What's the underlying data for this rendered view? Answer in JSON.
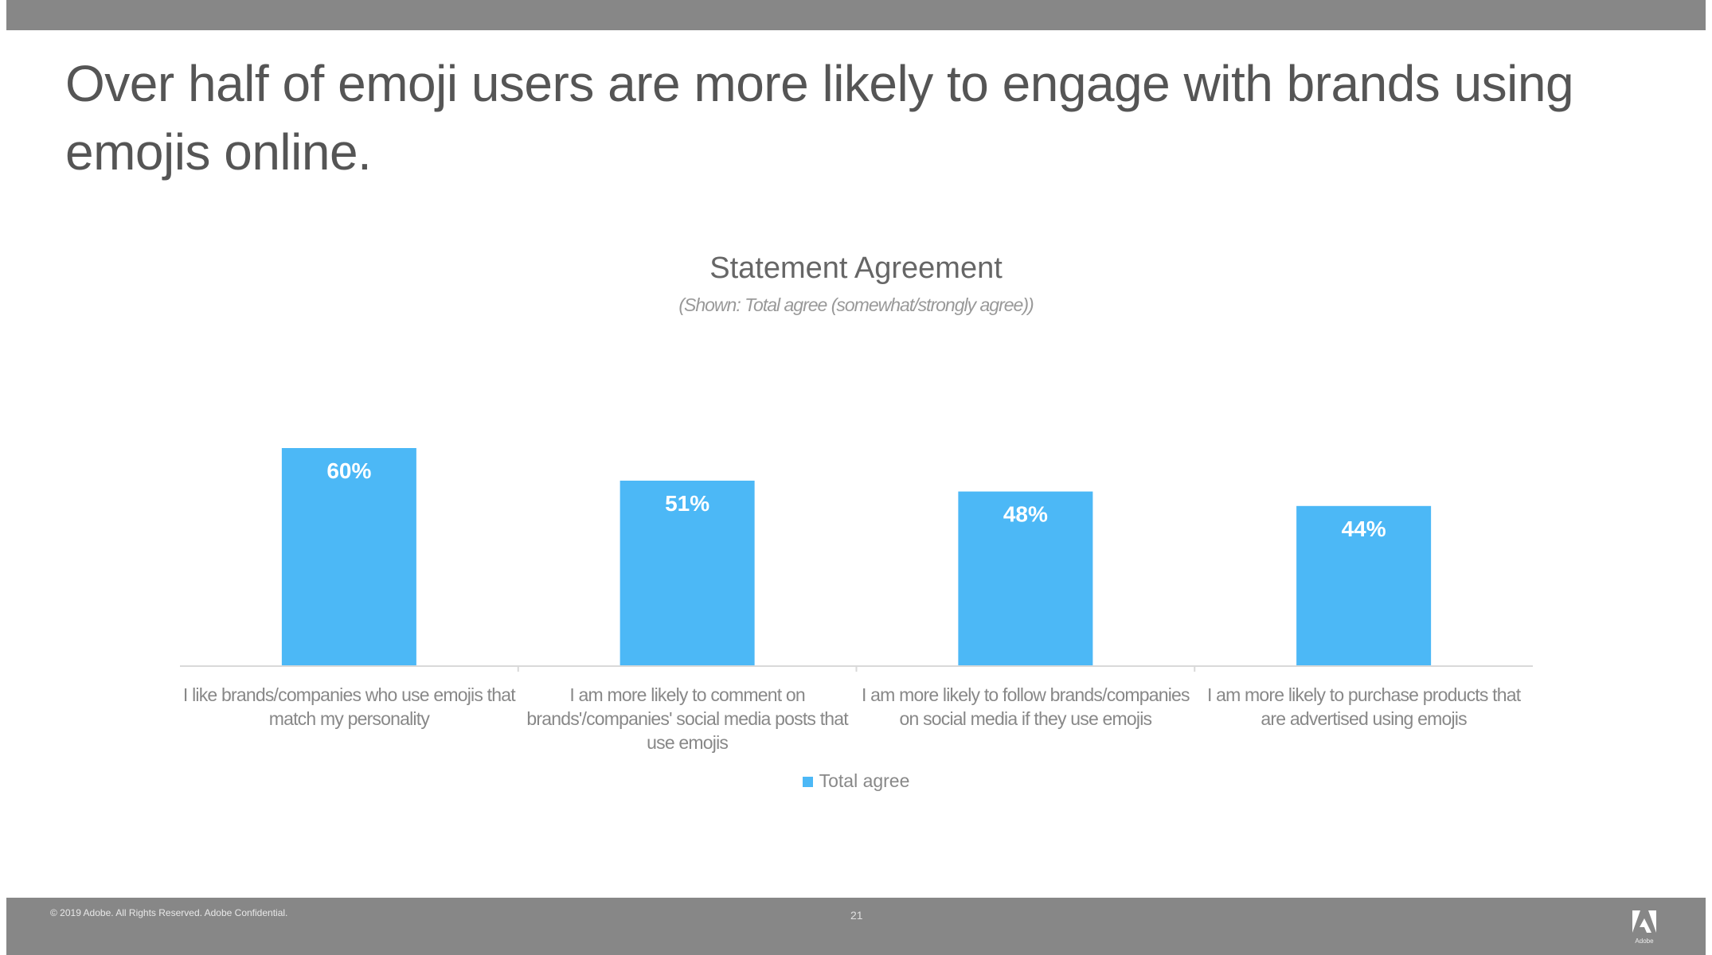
{
  "slide": {
    "title": "Over half of emoji users are more likely to engage with brands using emojis online.",
    "footer_copyright": "© 2019 Adobe. All Rights Reserved. Adobe Confidential.",
    "page_number": "21",
    "logo_text": "Adobe"
  },
  "colors": {
    "bar": "#4cb8f6",
    "bars_bg": "#878787"
  },
  "chart_data": {
    "type": "bar",
    "title": "Statement Agreement",
    "subtitle": "(Shown: Total agree (somewhat/strongly agree))",
    "categories": [
      "I like brands/companies who use emojis that match my personality",
      "I am more likely to comment on brands'/companies' social media posts that use emojis",
      "I am more likely to follow brands/companies on social media if they use emojis",
      "I am more likely to purchase products that are advertised using emojis"
    ],
    "series": [
      {
        "name": "Total agree",
        "values": [
          60,
          51,
          48,
          44
        ]
      }
    ],
    "data_labels": [
      "60%",
      "51%",
      "48%",
      "44%"
    ],
    "ylim": [
      0,
      100
    ],
    "grid": false,
    "legend": "bottom"
  }
}
